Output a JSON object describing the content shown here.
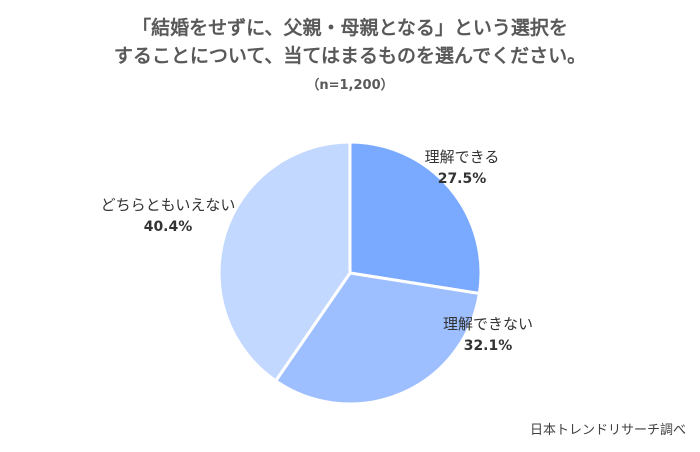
{
  "chart_data": {
    "type": "pie",
    "title_lines": [
      "「結婚をせずに、父親・母親となる」という選択を",
      "することについて、当てはまるものを選んでください。"
    ],
    "subtitle": "（n=1,200）",
    "slices": [
      {
        "label": "理解できる",
        "value": 27.5,
        "value_label": "27.5%",
        "color": "#7aaaff"
      },
      {
        "label": "理解できない",
        "value": 32.1,
        "value_label": "32.1%",
        "color": "#9dbfff"
      },
      {
        "label": "どちらともいえない",
        "value": 40.4,
        "value_label": "40.4%",
        "color": "#c3d8ff"
      }
    ],
    "start": "12 o'clock",
    "direction": "clockwise",
    "legend": "none"
  },
  "source": "日本トレンドリサーチ調べ"
}
